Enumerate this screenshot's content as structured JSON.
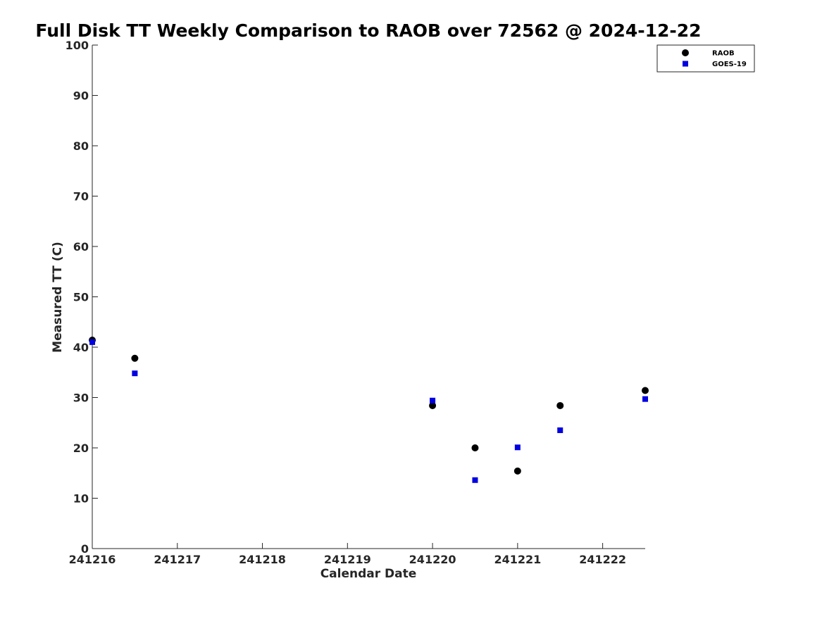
{
  "chart_data": {
    "type": "scatter",
    "title": "Full Disk TT Weekly Comparison to RAOB over 72562 @ 2024-12-22",
    "xlabel": "Calendar Date",
    "ylabel": "Measured TT (C)",
    "x_ticks": [
      "241216",
      "241217",
      "241218",
      "241219",
      "241220",
      "241221",
      "241222"
    ],
    "x_tick_values": [
      241216,
      241217,
      241218,
      241219,
      241220,
      241221,
      241222
    ],
    "xlim": [
      241216,
      241222.5
    ],
    "ylim": [
      0,
      100
    ],
    "y_ticks": [
      0,
      10,
      20,
      30,
      40,
      50,
      60,
      70,
      80,
      90,
      100
    ],
    "grid": false,
    "legend_position": "top-right",
    "series": [
      {
        "name": "RAOB",
        "marker": "circle",
        "color": "#000000",
        "points": [
          {
            "x": 241216.0,
            "y": 41.4
          },
          {
            "x": 241216.5,
            "y": 37.8
          },
          {
            "x": 241220.0,
            "y": 28.4
          },
          {
            "x": 241220.5,
            "y": 20.0
          },
          {
            "x": 241221.0,
            "y": 15.4
          },
          {
            "x": 241221.5,
            "y": 28.4
          },
          {
            "x": 241222.5,
            "y": 31.4
          }
        ]
      },
      {
        "name": "GOES-19",
        "marker": "square",
        "color": "#0000e0",
        "points": [
          {
            "x": 241216.0,
            "y": 41.0
          },
          {
            "x": 241216.5,
            "y": 34.8
          },
          {
            "x": 241220.0,
            "y": 29.4
          },
          {
            "x": 241220.5,
            "y": 13.6
          },
          {
            "x": 241221.0,
            "y": 20.1
          },
          {
            "x": 241221.5,
            "y": 23.5
          },
          {
            "x": 241222.5,
            "y": 29.7
          }
        ]
      }
    ]
  }
}
